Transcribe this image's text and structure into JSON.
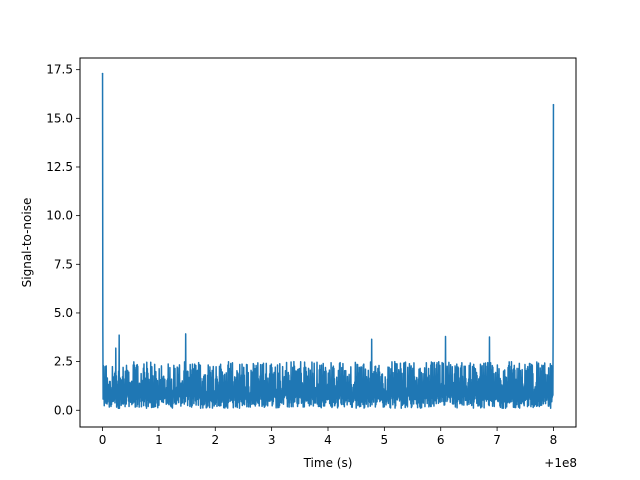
{
  "chart_data": {
    "type": "line",
    "xlabel": "Time (s)",
    "ylabel": "Signal-to-noise",
    "x_offset_label": "+1e8",
    "xlim": [
      -0.4,
      8.4
    ],
    "ylim": [
      -0.86,
      18.1
    ],
    "x_ticks": [
      {
        "value": 0,
        "label": "0"
      },
      {
        "value": 1,
        "label": "1"
      },
      {
        "value": 2,
        "label": "2"
      },
      {
        "value": 3,
        "label": "3"
      },
      {
        "value": 4,
        "label": "4"
      },
      {
        "value": 5,
        "label": "5"
      },
      {
        "value": 6,
        "label": "6"
      },
      {
        "value": 7,
        "label": "7"
      },
      {
        "value": 8,
        "label": "8"
      }
    ],
    "y_ticks": [
      {
        "value": 0.0,
        "label": "0.0"
      },
      {
        "value": 2.5,
        "label": "2.5"
      },
      {
        "value": 5.0,
        "label": "5.0"
      },
      {
        "value": 7.5,
        "label": "7.5"
      },
      {
        "value": 10.0,
        "label": "10.0"
      },
      {
        "value": 12.5,
        "label": "12.5"
      },
      {
        "value": 15.0,
        "label": "15.0"
      },
      {
        "value": 17.5,
        "label": "17.5"
      }
    ],
    "grid": false,
    "series": [
      {
        "color": "#1f77b4",
        "peaks": [
          {
            "x": 0.0,
            "y": 17.3
          },
          {
            "x": 8.0,
            "y": 15.7
          }
        ],
        "noise": {
          "x_start": 0.0,
          "x_end": 8.0,
          "typical_max": 2.5,
          "max": 4.0,
          "min": 0.0
        }
      }
    ]
  }
}
